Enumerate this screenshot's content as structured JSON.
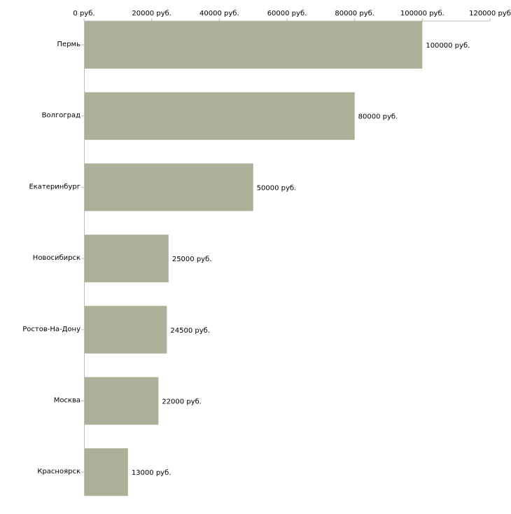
{
  "chart_data": {
    "type": "bar",
    "orientation": "horizontal",
    "categories": [
      "Пермь",
      "Волгоград",
      "Екатеринбург",
      "Новосибирск",
      "Ростов-На-Дону",
      "Москва",
      "Красноярск"
    ],
    "values": [
      100000,
      80000,
      50000,
      25000,
      24500,
      22000,
      13000
    ],
    "value_labels": [
      "100000 руб.",
      "80000 руб.",
      "50000 руб.",
      "25000 руб.",
      "24500 руб.",
      "22000 руб.",
      "13000 руб."
    ],
    "xlim": [
      0,
      120000
    ],
    "ticks": [
      0,
      20000,
      40000,
      60000,
      80000,
      100000,
      120000
    ],
    "tick_labels": [
      "0 руб.",
      "20000 руб.",
      "40000 руб.",
      "60000 руб.",
      "80000 руб.",
      "100000 руб.",
      "120000 руб"
    ],
    "axis_position": "top",
    "title": "",
    "xlabel": "",
    "ylabel": "",
    "grid": false,
    "colors": {
      "bar": "#abb199",
      "axis": "#bdbdbd",
      "text": "#000000"
    }
  }
}
